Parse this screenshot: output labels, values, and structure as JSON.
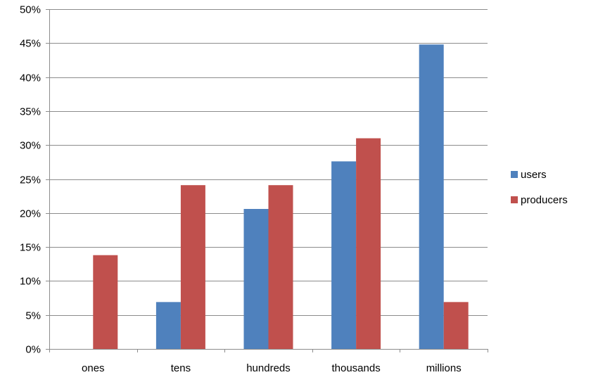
{
  "chart_data": {
    "type": "bar",
    "categories": [
      "ones",
      "tens",
      "hundreds",
      "thousands",
      "millions"
    ],
    "series": [
      {
        "name": "users",
        "color": "#4F81BD",
        "values": [
          0,
          6.9,
          20.6,
          27.6,
          44.8
        ]
      },
      {
        "name": "producers",
        "color": "#C0504D",
        "values": [
          13.8,
          24.1,
          24.1,
          31.0,
          6.9
        ]
      }
    ],
    "ylim": [
      0,
      50
    ],
    "yticks": [
      "0%",
      "5%",
      "10%",
      "15%",
      "20%",
      "25%",
      "30%",
      "35%",
      "40%",
      "45%",
      "50%"
    ],
    "ytick_values": [
      0,
      5,
      10,
      15,
      20,
      25,
      30,
      35,
      40,
      45,
      50
    ],
    "grid": true,
    "legend": "right",
    "title": "",
    "xlabel": "",
    "ylabel": ""
  }
}
